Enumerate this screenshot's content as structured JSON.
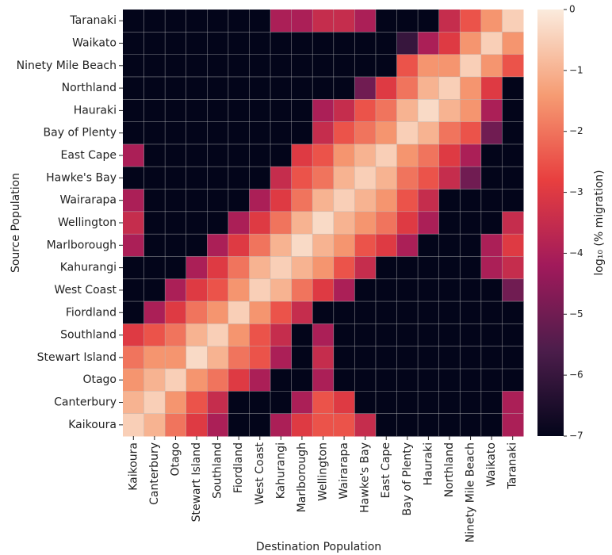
{
  "chart_data": {
    "type": "heatmap",
    "xlabel": "Destination Population",
    "ylabel": "Source Population",
    "colorbar_label": "log₁₀ (% migration)",
    "categories": [
      "Kaikoura",
      "Canterbury",
      "Otago",
      "Stewart Island",
      "Southland",
      "Fiordland",
      "West Coast",
      "Kahurangi",
      "Marlborough",
      "Wellington",
      "Wairarapa",
      "Hawke's Bay",
      "East Cape",
      "Bay of Plenty",
      "Hauraki",
      "Northland",
      "Ninety Mile Beach",
      "Waikato",
      "Taranaki"
    ],
    "y_categories": [
      "Taranaki",
      "Waikato",
      "Ninety Mile Beach",
      "Northland",
      "Hauraki",
      "Bay of Plenty",
      "East Cape",
      "Hawke's Bay",
      "Wairarapa",
      "Wellington",
      "Marlborough",
      "Kahurangi",
      "West Coast",
      "Fiordland",
      "Southland",
      "Stewart Island",
      "Otago",
      "Canterbury",
      "Kaikoura"
    ],
    "z": [
      [
        -7,
        -7,
        -7,
        -7,
        -7,
        -7,
        -7,
        -4,
        -4,
        -3.5,
        -3.5,
        -4,
        -7,
        -7,
        -7,
        -3.5,
        -2.5,
        -1.5,
        -0.5
      ],
      [
        -7,
        -7,
        -7,
        -7,
        -7,
        -7,
        -7,
        -7,
        -7,
        -7,
        -7,
        -7,
        -7,
        -6,
        -4,
        -3,
        -1.5,
        -0.5,
        -1.5
      ],
      [
        -7,
        -7,
        -7,
        -7,
        -7,
        -7,
        -7,
        -7,
        -7,
        -7,
        -7,
        -7,
        -7,
        -2.5,
        -1.5,
        -1.5,
        -0.5,
        -1.5,
        -2.5
      ],
      [
        -7,
        -7,
        -7,
        -7,
        -7,
        -7,
        -7,
        -7,
        -7,
        -7,
        -7,
        -5,
        -3,
        -2,
        -1,
        -0.5,
        -1.5,
        -3,
        -7
      ],
      [
        -7,
        -7,
        -7,
        -7,
        -7,
        -7,
        -7,
        -7,
        -7,
        -4,
        -3.5,
        -2.5,
        -2,
        -1,
        -0.3,
        -1,
        -1.5,
        -4,
        -7
      ],
      [
        -7,
        -7,
        -7,
        -7,
        -7,
        -7,
        -7,
        -7,
        -7,
        -3.5,
        -2.5,
        -2,
        -1.5,
        -0.5,
        -1,
        -2,
        -2.5,
        -5,
        -7
      ],
      [
        -4,
        -7,
        -7,
        -7,
        -7,
        -7,
        -7,
        -7,
        -3,
        -2.5,
        -1.5,
        -1,
        -0.5,
        -1.5,
        -2,
        -3,
        -4,
        -7,
        -7
      ],
      [
        -7,
        -7,
        -7,
        -7,
        -7,
        -7,
        -7,
        -3.5,
        -2.5,
        -2,
        -1,
        -0.5,
        -1,
        -2,
        -2.5,
        -3.5,
        -5,
        -7,
        -7
      ],
      [
        -4,
        -7,
        -7,
        -7,
        -7,
        -7,
        -4,
        -3,
        -2,
        -1,
        -0.5,
        -1,
        -1.5,
        -2.5,
        -3.5,
        -7,
        -7,
        -7,
        -7
      ],
      [
        -3.5,
        -7,
        -7,
        -7,
        -7,
        -4,
        -3,
        -2,
        -1,
        -0.3,
        -1,
        -1.5,
        -2,
        -3,
        -4,
        -7,
        -7,
        -7,
        -3.5
      ],
      [
        -4,
        -7,
        -7,
        -7,
        -4,
        -3,
        -2,
        -1,
        -0.3,
        -1,
        -1.5,
        -2.5,
        -3,
        -4,
        -7,
        -7,
        -7,
        -4,
        -3
      ],
      [
        -7,
        -7,
        -7,
        -4,
        -3,
        -2,
        -1,
        -0.5,
        -1,
        -1.5,
        -2.5,
        -3.5,
        -7,
        -7,
        -7,
        -7,
        -7,
        -4,
        -3.5
      ],
      [
        -7,
        -7,
        -4,
        -3,
        -2.5,
        -1.5,
        -0.5,
        -1,
        -2,
        -3,
        -4,
        -7,
        -7,
        -7,
        -7,
        -7,
        -7,
        -7,
        -5
      ],
      [
        -7,
        -4,
        -3,
        -2,
        -1.5,
        -0.5,
        -1.5,
        -2.5,
        -3.5,
        -7,
        -7,
        -7,
        -7,
        -7,
        -7,
        -7,
        -7,
        -7,
        -7
      ],
      [
        -3,
        -2.5,
        -2,
        -1,
        -0.5,
        -1.5,
        -2.5,
        -3.5,
        -7,
        -4,
        -7,
        -7,
        -7,
        -7,
        -7,
        -7,
        -7,
        -7,
        -7
      ],
      [
        -2,
        -1.5,
        -1.5,
        -0.3,
        -1,
        -2,
        -2.5,
        -4,
        -7,
        -3.5,
        -7,
        -7,
        -7,
        -7,
        -7,
        -7,
        -7,
        -7,
        -7
      ],
      [
        -1.5,
        -1,
        -0.5,
        -1.5,
        -2,
        -3,
        -4,
        -7,
        -7,
        -4,
        -7,
        -7,
        -7,
        -7,
        -7,
        -7,
        -7,
        -7,
        -7
      ],
      [
        -1,
        -0.5,
        -1.5,
        -2.5,
        -3.5,
        -7,
        -7,
        -7,
        -4,
        -2.5,
        -3,
        -7,
        -7,
        -7,
        -7,
        -7,
        -7,
        -7,
        -4
      ],
      [
        -0.5,
        -1,
        -2,
        -3,
        -4,
        -7,
        -7,
        -4,
        -3,
        -2.5,
        -2.5,
        -3.5,
        -7,
        -7,
        -7,
        -7,
        -7,
        -7,
        -4
      ]
    ],
    "zlim": [
      -7,
      0
    ],
    "zticks": [
      0,
      {
        "value": -1,
        "label": "−1"
      },
      {
        "value": -2,
        "label": "−2"
      },
      {
        "value": -3,
        "label": "−3"
      },
      {
        "value": -4,
        "label": "−4"
      },
      {
        "value": -5,
        "label": "−5"
      },
      {
        "value": -6,
        "label": "−6"
      },
      {
        "value": -7,
        "label": "−7"
      }
    ],
    "colormap": [
      "#03051a",
      "#4c1d4b",
      "#a11a5b",
      "#e83f3f",
      "#f69c73",
      "#faebdd"
    ],
    "grid": true
  }
}
